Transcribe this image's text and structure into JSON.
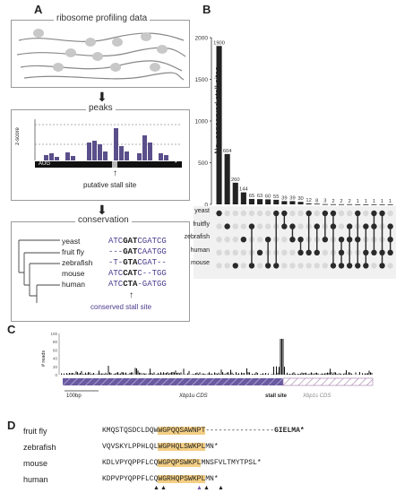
{
  "panels": {
    "a": "A",
    "b": "B",
    "c": "C",
    "d": "D"
  },
  "panel_a": {
    "box1_title": "ribosome profiling data",
    "box2_title": "peaks",
    "zscore_label": "z-score",
    "aug_label": "AUG",
    "star_label": "*",
    "putative_label": "putative stall site",
    "box3_title": "conservation",
    "species": [
      "yeast",
      "fruit fly",
      "zebrafish",
      "mouse",
      "human"
    ],
    "seqs": [
      {
        "pre": "ATC",
        "mid": "GAT",
        "post": "CGATCG"
      },
      {
        "pre": "---",
        "mid": "GAT",
        "post": "CAATGG"
      },
      {
        "pre": "-T-",
        "mid": "GTA",
        "post": "CGAT--"
      },
      {
        "pre": "ATC",
        "mid": "CAT",
        "post": "C--TGG"
      },
      {
        "pre": "ATC",
        "mid": "CTA",
        "post": "-GATGG"
      }
    ],
    "conserved_label": "conserved stall site"
  },
  "chart_data": {
    "type": "bar",
    "ylabel": "No. conserved stall sites",
    "ylim": [
      0,
      2000
    ],
    "yticks": [
      0,
      500,
      1000,
      1500,
      2000
    ],
    "values": [
      1900,
      604,
      260,
      144,
      65,
      63,
      60,
      55,
      39,
      39,
      30,
      12,
      8,
      3,
      2,
      2,
      2,
      1,
      1,
      1,
      1,
      1
    ],
    "set_names": [
      "yeast",
      "fruitfly",
      "zebrafish",
      "human",
      "mouse"
    ]
  },
  "panel_c": {
    "yaxis_label": "# reads",
    "yticks": [
      "100",
      "80",
      "60",
      "40",
      "20",
      "0"
    ],
    "scale_label": "100bp",
    "cds_label": "Xbp1u CDS",
    "stall_label": "stall site",
    "cds2_label": "Xbp1s CDS"
  },
  "panel_d": {
    "rows": [
      {
        "name": "fruit fly",
        "pre": "KMQSTQSDCLDQW",
        "seg": "WG",
        "mid": "PQQSAWNPT",
        "post": "----------------",
        "tail": "GIELMA*"
      },
      {
        "name": "zebrafish",
        "pre": "VQVSKYLPPHLQL",
        "seg": "WG",
        "mid": "PHQLSWKPL",
        "post": "MN*",
        "tail": ""
      },
      {
        "name": "mouse",
        "pre": "KDLVPYQPPFLCQ",
        "seg": "WG",
        "mid": "PQPSWKPL",
        "post": "MNSFVLTMYTPSL*",
        "tail": ""
      },
      {
        "name": "human",
        "pre": "KDPVPYQPPFLCQ",
        "seg": "WG",
        "mid": "RHQPSWKPL",
        "post": "MN*",
        "tail": ""
      }
    ],
    "arrows": [
      "▲",
      "▲",
      "▲",
      "▲",
      "▲"
    ]
  }
}
